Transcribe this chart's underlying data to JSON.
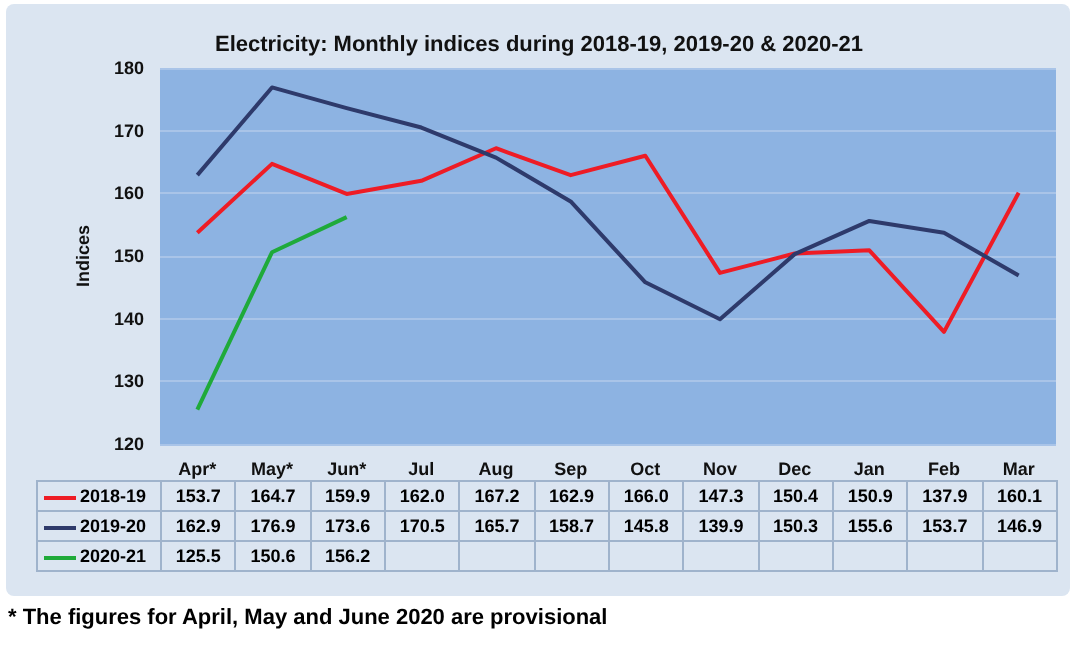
{
  "chart_data": {
    "type": "line",
    "title": "Electricity: Monthly indices during 2018-19, 2019-20 & 2020-21",
    "ylabel": "Indices",
    "categories": [
      "Apr*",
      "May*",
      "Jun*",
      "Jul",
      "Aug",
      "Sep",
      "Oct",
      "Nov",
      "Dec",
      "Jan",
      "Feb",
      "Mar"
    ],
    "series": [
      {
        "name": "2018-19",
        "color": "#ee1c25",
        "values": [
          153.7,
          164.7,
          159.9,
          162.0,
          167.2,
          162.9,
          166.0,
          147.3,
          150.4,
          150.9,
          137.9,
          160.1
        ],
        "value_labels": [
          "153.7",
          "164.7",
          "159.9",
          "162.0",
          "167.2",
          "162.9",
          "166.0",
          "147.3",
          "150.4",
          "150.9",
          "137.9",
          "160.1"
        ]
      },
      {
        "name": "2019-20",
        "color": "#2e3a6b",
        "values": [
          162.9,
          176.9,
          173.6,
          170.5,
          165.7,
          158.7,
          145.8,
          139.9,
          150.3,
          155.6,
          153.7,
          146.9
        ],
        "value_labels": [
          "162.9",
          "176.9",
          "173.6",
          "170.5",
          "165.7",
          "158.7",
          "145.8",
          "139.9",
          "150.3",
          "155.6",
          "153.7",
          "146.9"
        ]
      },
      {
        "name": "2020-21",
        "color": "#1faa3a",
        "values": [
          125.5,
          150.6,
          156.2,
          null,
          null,
          null,
          null,
          null,
          null,
          null,
          null,
          null
        ],
        "value_labels": [
          "125.5",
          "150.6",
          "156.2",
          null,
          null,
          null,
          null,
          null,
          null,
          null,
          null,
          null
        ]
      }
    ],
    "ylim": [
      120,
      180
    ],
    "yticks": [
      120,
      130,
      140,
      150,
      160,
      170,
      180
    ],
    "grid": "y",
    "marker": "none",
    "legend": "bottom",
    "annotations": [
      "* The figures for April, May and June 2020 are provisional"
    ]
  }
}
